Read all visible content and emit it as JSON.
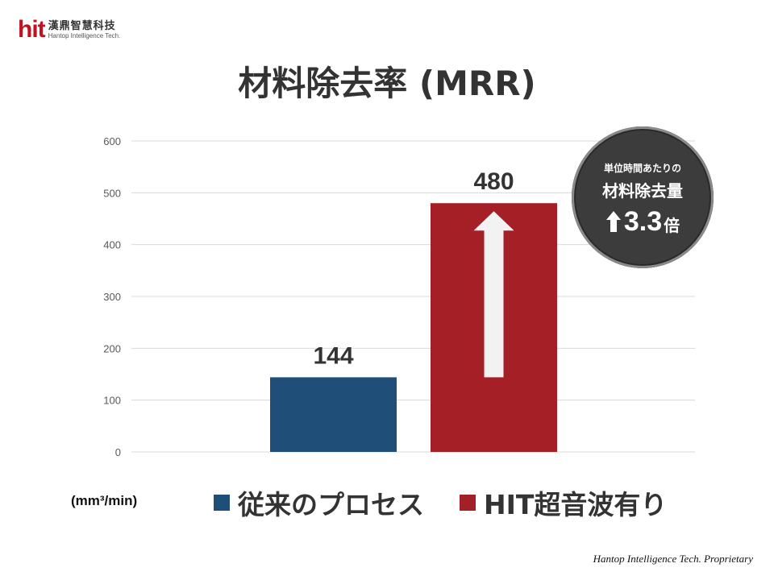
{
  "logo": {
    "mark": "hit",
    "name_cn": "漢鼎智慧科技",
    "name_en": "Hantop Intelligence Tech."
  },
  "title": "材料除去率 (MRR)",
  "unit": "(mm³/min)",
  "badge": {
    "line1": "単位時間あたりの",
    "line2": "材料除去量",
    "value": "3.3",
    "suffix": "倍",
    "icon": "up-arrow-icon"
  },
  "footer": "Hantop Intelligence Tech. Proprietary",
  "colors": {
    "series1": "#1f4e79",
    "series2": "#a51f26",
    "arrow": "#f2f2f2"
  },
  "chart_data": {
    "type": "bar",
    "categories": [
      ""
    ],
    "series": [
      {
        "name": "従来のプロセス",
        "values": [
          144
        ],
        "color": "#1f4e79"
      },
      {
        "name": "HIT超音波有り",
        "values": [
          480
        ],
        "color": "#a51f26"
      }
    ],
    "ylim": [
      0,
      600
    ],
    "yticks": [
      "0",
      "100",
      "200",
      "300",
      "400",
      "500",
      "600"
    ],
    "data_labels": [
      "144",
      "480"
    ],
    "grid": true,
    "legend": "bottom",
    "annotation": "up arrow from 144 to 480"
  }
}
